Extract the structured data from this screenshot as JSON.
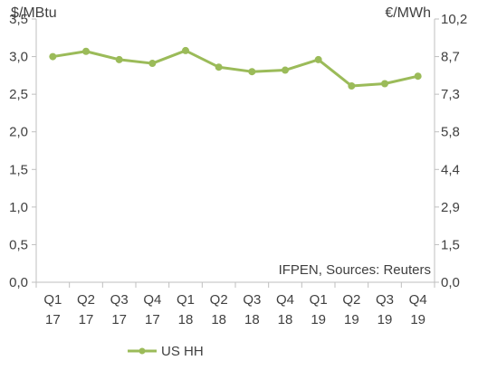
{
  "chart_data": {
    "type": "line",
    "categories": [
      [
        "Q1",
        "17"
      ],
      [
        "Q2",
        "17"
      ],
      [
        "Q3",
        "17"
      ],
      [
        "Q4",
        "17"
      ],
      [
        "Q1",
        "18"
      ],
      [
        "Q2",
        "18"
      ],
      [
        "Q3",
        "18"
      ],
      [
        "Q4",
        "18"
      ],
      [
        "Q1",
        "19"
      ],
      [
        "Q2",
        "19"
      ],
      [
        "Q3",
        "19"
      ],
      [
        "Q4",
        "19"
      ]
    ],
    "series": [
      {
        "name": "US HH",
        "color": "#9bbb59",
        "values": [
          3.0,
          3.07,
          2.96,
          2.91,
          3.08,
          2.86,
          2.8,
          2.82,
          2.96,
          2.61,
          2.64,
          2.74
        ]
      }
    ],
    "y_left": {
      "unit": "$/MBtu",
      "ylim": [
        0,
        3.5
      ],
      "ticks": [
        "0,0",
        "0,5",
        "1,0",
        "1,5",
        "2,0",
        "2,5",
        "3,0",
        "3,5"
      ]
    },
    "y_right": {
      "unit": "€/MWh",
      "ticks": [
        "0,0",
        "1,5",
        "2,9",
        "4,4",
        "5,8",
        "7,3",
        "8,7",
        "10,2"
      ]
    },
    "annotation": "IFPEN, Sources: Reuters",
    "grid": false,
    "legend": "bottom-left"
  }
}
